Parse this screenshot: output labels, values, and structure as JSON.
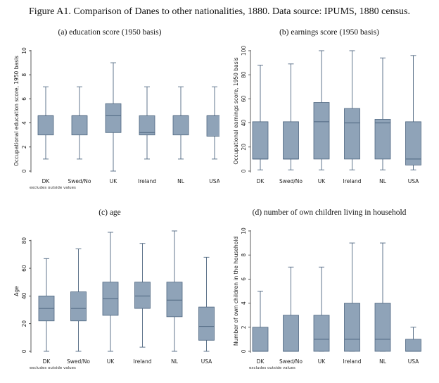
{
  "figure_title": "Figure A1. Comparison of Danes to other nationalities, 1880. Data source: IPUMS, 1880 census.",
  "colors": {
    "box_fill": "#8fa3b8",
    "box_stroke": "#4e6680",
    "axis": "#333333"
  },
  "chart_data": [
    {
      "type": "box",
      "title": "(a) education score (1950 basis)",
      "ylabel": "Occupational education score, 1950 basis",
      "note": "excludes outside values",
      "ylim": [
        0,
        10
      ],
      "yticks": [
        0,
        2,
        4,
        6,
        8,
        10
      ],
      "categories": [
        "DK",
        "Swed/No",
        "UK",
        "Ireland",
        "NL",
        "USA"
      ],
      "boxes": [
        {
          "min": 1,
          "q1": 3,
          "median": 4.6,
          "q3": 4.6,
          "max": 7
        },
        {
          "min": 1,
          "q1": 3,
          "median": 4.6,
          "q3": 4.6,
          "max": 7
        },
        {
          "min": 0,
          "q1": 3.2,
          "median": 4.6,
          "q3": 5.6,
          "max": 9
        },
        {
          "min": 1,
          "q1": 3,
          "median": 3.2,
          "q3": 4.6,
          "max": 7
        },
        {
          "min": 1,
          "q1": 3,
          "median": 4.6,
          "q3": 4.6,
          "max": 7
        },
        {
          "min": 1,
          "q1": 2.9,
          "median": 4.6,
          "q3": 4.6,
          "max": 7
        }
      ]
    },
    {
      "type": "box",
      "title": "(b) earnings score (1950 basis)",
      "ylabel": "Occupational earnings score, 1950 basis",
      "note": "",
      "ylim": [
        0,
        100
      ],
      "yticks": [
        0,
        20,
        40,
        60,
        80,
        100
      ],
      "categories": [
        "DK",
        "Swed/No",
        "UK",
        "Ireland",
        "NL",
        "USA"
      ],
      "boxes": [
        {
          "min": 1,
          "q1": 10,
          "median": 10,
          "q3": 41,
          "max": 88
        },
        {
          "min": 1,
          "q1": 10,
          "median": 10,
          "q3": 41,
          "max": 89
        },
        {
          "min": 1,
          "q1": 10,
          "median": 41,
          "q3": 57,
          "max": 100
        },
        {
          "min": 1,
          "q1": 10,
          "median": 40,
          "q3": 52,
          "max": 100
        },
        {
          "min": 1,
          "q1": 10,
          "median": 40,
          "q3": 43,
          "max": 94
        },
        {
          "min": 1,
          "q1": 5,
          "median": 10,
          "q3": 41,
          "max": 96
        }
      ]
    },
    {
      "type": "box",
      "title": "(c) age",
      "ylabel": "Age",
      "note": "excludes outside values",
      "ylim": [
        0,
        87
      ],
      "yticks": [
        0,
        20,
        40,
        60,
        80
      ],
      "categories": [
        "DK",
        "Swed/No",
        "UK",
        "Ireland",
        "NL",
        "USA"
      ],
      "boxes": [
        {
          "min": 0,
          "q1": 22,
          "median": 31,
          "q3": 40,
          "max": 67
        },
        {
          "min": 0,
          "q1": 22,
          "median": 31,
          "q3": 43,
          "max": 74
        },
        {
          "min": 0,
          "q1": 26,
          "median": 38,
          "q3": 50,
          "max": 86
        },
        {
          "min": 3,
          "q1": 31,
          "median": 40,
          "q3": 50,
          "max": 78
        },
        {
          "min": 0,
          "q1": 25,
          "median": 37,
          "q3": 50,
          "max": 87
        },
        {
          "min": 0,
          "q1": 8,
          "median": 18,
          "q3": 32,
          "max": 68
        }
      ]
    },
    {
      "type": "box",
      "title": "(d) number of own children living in household",
      "ylabel": "Number of own children in the household",
      "note": "excludes outside values",
      "ylim": [
        0,
        10
      ],
      "yticks": [
        0,
        2,
        4,
        6,
        8,
        10
      ],
      "categories": [
        "DK",
        "Swed/No",
        "UK",
        "Ireland",
        "NL",
        "USA"
      ],
      "boxes": [
        {
          "min": 0,
          "q1": 0,
          "median": 0,
          "q3": 2,
          "max": 5
        },
        {
          "min": 0,
          "q1": 0,
          "median": 0,
          "q3": 3,
          "max": 7
        },
        {
          "min": 0,
          "q1": 0,
          "median": 1,
          "q3": 3,
          "max": 7
        },
        {
          "min": 0,
          "q1": 0,
          "median": 1,
          "q3": 4,
          "max": 9
        },
        {
          "min": 0,
          "q1": 0,
          "median": 1,
          "q3": 4,
          "max": 9
        },
        {
          "min": 0,
          "q1": 0,
          "median": 0,
          "q3": 1,
          "max": 2
        }
      ]
    }
  ]
}
